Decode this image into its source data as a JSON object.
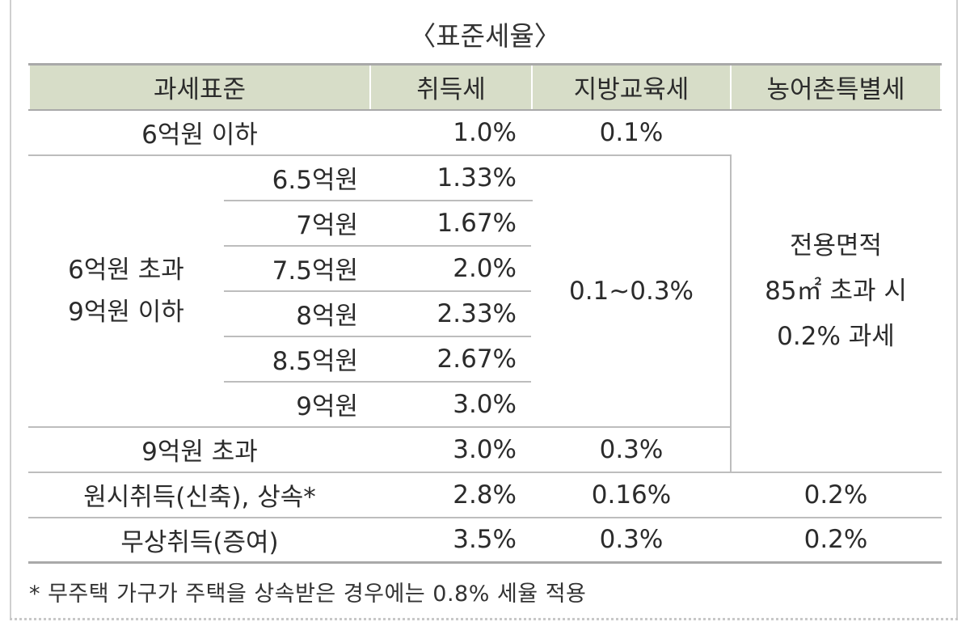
{
  "caption": "〈표준세율〉",
  "headers": {
    "base": "과세표준",
    "acq": "취득세",
    "local": "지방교육세",
    "agri": "농어촌특별세"
  },
  "rows": {
    "r1": {
      "label": "6억원 이하",
      "acq": "1.0%",
      "local": "0.1%"
    },
    "group": {
      "label_line1": "6억원 초과",
      "label_line2": "9억원 이하",
      "local": "0.1~0.3%",
      "items": [
        {
          "sub": "6.5억원",
          "acq": "1.33%"
        },
        {
          "sub": "7억원",
          "acq": "1.67%"
        },
        {
          "sub": "7.5억원",
          "acq": "2.0%"
        },
        {
          "sub": "8억원",
          "acq": "2.33%"
        },
        {
          "sub": "8.5억원",
          "acq": "2.67%"
        },
        {
          "sub": "9억원",
          "acq": "3.0%"
        }
      ]
    },
    "r3": {
      "label": "9억원 초과",
      "acq": "3.0%",
      "local": "0.3%"
    },
    "agri_merged": {
      "line1": "전용면적",
      "line2": "85㎡ 초과 시",
      "line3": "0.2% 과세"
    },
    "r4": {
      "label": "원시취득(신축), 상속*",
      "acq": "2.8%",
      "local": "0.16%",
      "agri": "0.2%"
    },
    "r5": {
      "label": "무상취득(증여)",
      "acq": "3.5%",
      "local": "0.3%",
      "agri": "0.2%"
    }
  },
  "footnote": "* 무주택 가구가 주택을 상속받은 경우에는 0.8% 세율 적용"
}
